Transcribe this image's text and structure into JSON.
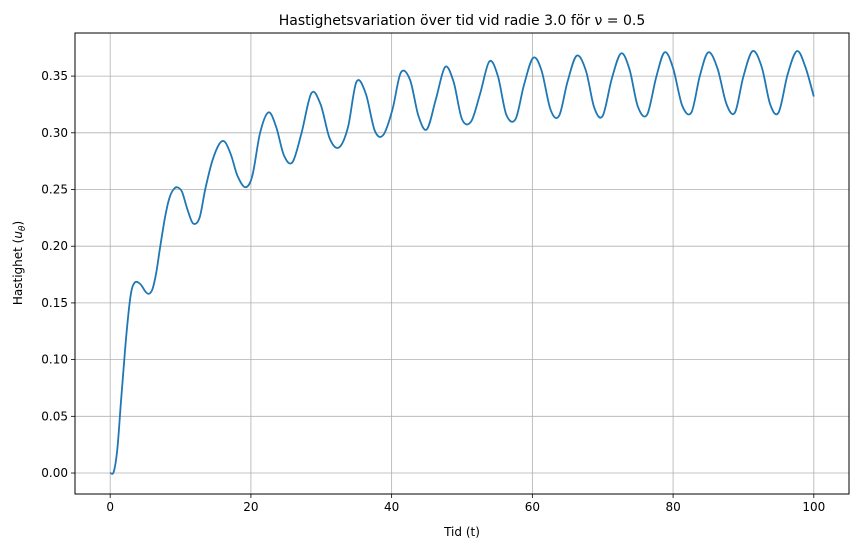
{
  "chart_data": {
    "type": "line",
    "title": "Hastighetsvariation över tid vid radie 3.0 för ν = 0.5",
    "xlabel": "Tid (t)",
    "ylabel": "Hastighet (uθ)",
    "xlim": [
      -5,
      105
    ],
    "ylim": [
      -0.0185,
      0.388
    ],
    "xticks": [
      0,
      20,
      40,
      60,
      80,
      100
    ],
    "yticks": [
      0.0,
      0.05,
      0.1,
      0.15,
      0.2,
      0.25,
      0.3,
      0.35
    ],
    "xtick_labels": [
      "0",
      "20",
      "40",
      "60",
      "80",
      "100"
    ],
    "ytick_labels": [
      "0.00",
      "0.05",
      "0.10",
      "0.15",
      "0.20",
      "0.25",
      "0.30",
      "0.35"
    ],
    "grid": true,
    "line_color": "#1f77b4",
    "series": [
      {
        "x": [
          0,
          0.5,
          1.0,
          1.5,
          2.0,
          2.5,
          3.0,
          3.5,
          4.0,
          4.5,
          5.0,
          5.5,
          6.0,
          6.5,
          7.0,
          7.5,
          8.0,
          8.5,
          9.0,
          9.5,
          10.2,
          11.0,
          11.8,
          12.7,
          13.5,
          14.5,
          15.5,
          16.3,
          17.2,
          18.1,
          19.2,
          20.2,
          21.3,
          22.5,
          23.6,
          24.7,
          25.9,
          27.2,
          28.6,
          29.9,
          31.2,
          32.5,
          33.8,
          35.0,
          36.3,
          37.6,
          38.8,
          40.1,
          41.3,
          42.6,
          43.8,
          45.0,
          46.3,
          47.6,
          48.8,
          50.0,
          51.3,
          52.6,
          53.9,
          55.1,
          56.3,
          57.6,
          58.8,
          60.1,
          61.3,
          62.6,
          63.8,
          65.0,
          66.3,
          67.6,
          68.8,
          70.0,
          71.3,
          72.6,
          73.8,
          75.0,
          76.3,
          77.6,
          78.8,
          80.0,
          81.3,
          82.6,
          83.8,
          85.0,
          86.3,
          87.6,
          88.8,
          90.0,
          91.3,
          92.6,
          93.8,
          95.0,
          96.3,
          97.6,
          98.8,
          100.0
        ],
        "y": [
          0.0,
          0.001,
          0.02,
          0.06,
          0.1,
          0.135,
          0.16,
          0.168,
          0.168,
          0.165,
          0.16,
          0.158,
          0.162,
          0.175,
          0.195,
          0.215,
          0.232,
          0.244,
          0.25,
          0.252,
          0.248,
          0.232,
          0.22,
          0.225,
          0.25,
          0.275,
          0.29,
          0.292,
          0.28,
          0.262,
          0.252,
          0.262,
          0.3,
          0.318,
          0.305,
          0.28,
          0.274,
          0.3,
          0.335,
          0.325,
          0.295,
          0.287,
          0.305,
          0.345,
          0.335,
          0.302,
          0.298,
          0.32,
          0.353,
          0.347,
          0.315,
          0.303,
          0.33,
          0.358,
          0.345,
          0.312,
          0.31,
          0.335,
          0.363,
          0.35,
          0.316,
          0.312,
          0.342,
          0.366,
          0.355,
          0.32,
          0.315,
          0.345,
          0.368,
          0.355,
          0.322,
          0.315,
          0.348,
          0.37,
          0.356,
          0.323,
          0.316,
          0.349,
          0.371,
          0.357,
          0.324,
          0.318,
          0.35,
          0.371,
          0.357,
          0.325,
          0.318,
          0.35,
          0.372,
          0.358,
          0.325,
          0.318,
          0.352,
          0.372,
          0.358,
          0.332
        ]
      }
    ]
  }
}
